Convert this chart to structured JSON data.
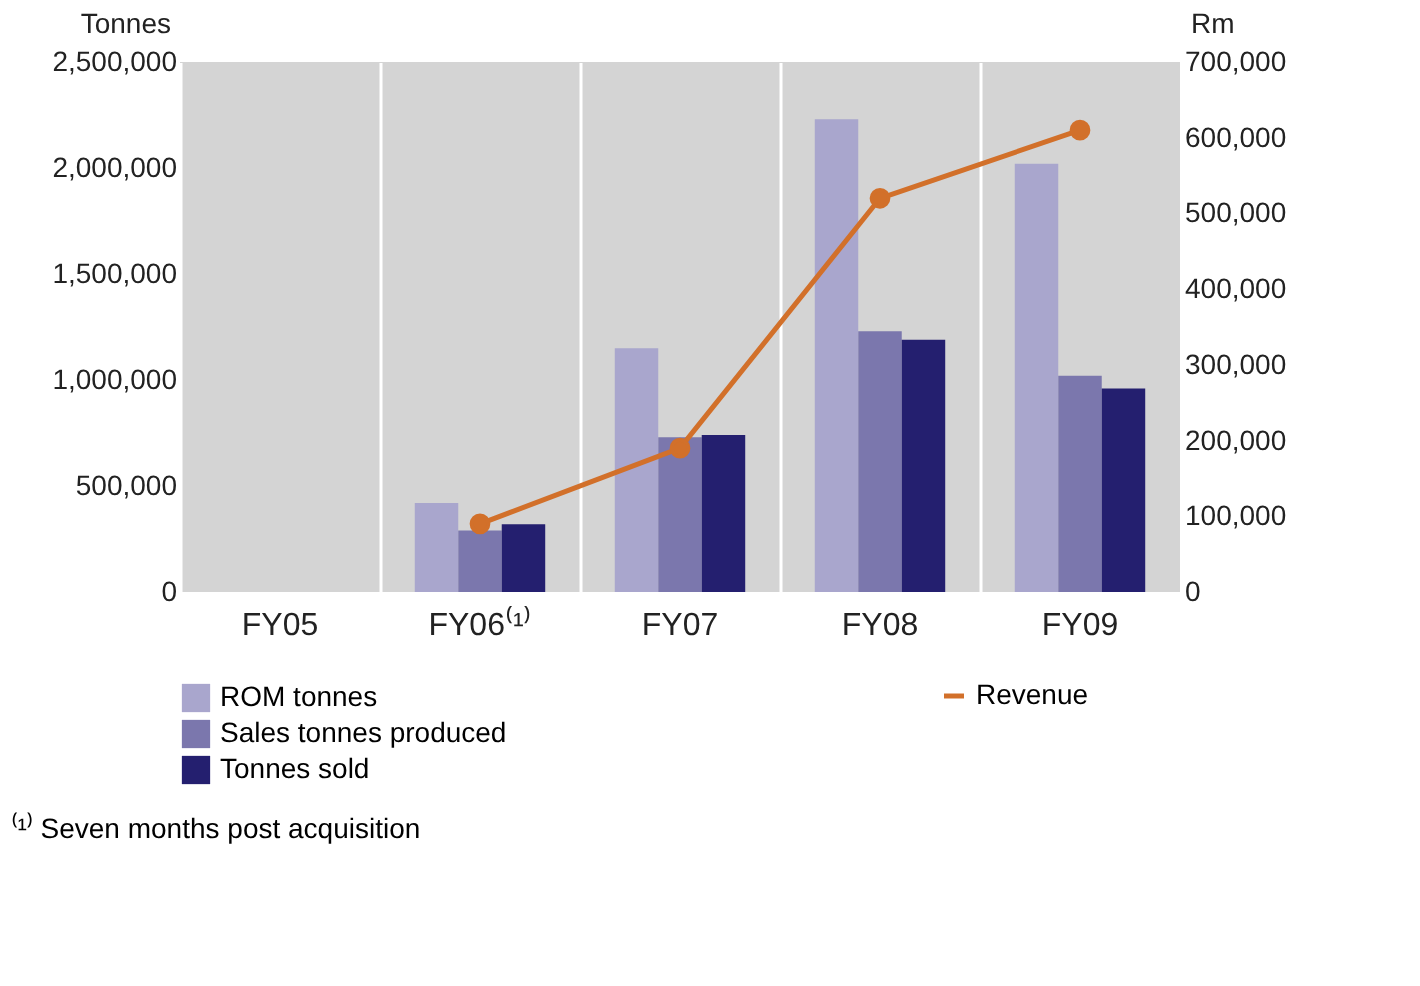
{
  "chart_data": {
    "type": "bar",
    "categories": [
      "FY05",
      "FY06⁽¹⁾",
      "FY07",
      "FY08",
      "FY09"
    ],
    "ylabel": "Tonnes",
    "y2label": "Rm",
    "series": [
      {
        "name": "ROM tonnes",
        "color": "#a9a6cd",
        "values": [
          null,
          420000,
          1150000,
          2230000,
          2020000
        ]
      },
      {
        "name": "Sales tonnes produced",
        "color": "#7b77ad",
        "values": [
          null,
          290000,
          730000,
          1230000,
          1020000
        ]
      },
      {
        "name": "Tonnes sold",
        "color": "#241f6f",
        "values": [
          null,
          320000,
          740000,
          1190000,
          960000
        ]
      },
      {
        "name": "Revenue",
        "type": "line",
        "axis": "y2",
        "color": "#d2702a",
        "marker": "circle",
        "values": [
          null,
          90000,
          190000,
          520000,
          610000
        ]
      }
    ],
    "ylim": [
      0,
      2500000
    ],
    "yticks": [
      0,
      {
        "value": 500000,
        "label": "500,000"
      },
      {
        "value": 1000000,
        "label": "1,000,000"
      },
      {
        "value": 1500000,
        "label": "1,500,000"
      },
      {
        "value": 2000000,
        "label": "2,000,000"
      },
      {
        "value": 2500000,
        "label": "2,500,000"
      }
    ],
    "y2lim": [
      0,
      700000
    ],
    "y2ticks": [
      0,
      {
        "value": 100000,
        "label": "100,000"
      },
      {
        "value": 200000,
        "label": "200,000"
      },
      {
        "value": 300000,
        "label": "300,000"
      },
      {
        "value": 400000,
        "label": "400,000"
      },
      {
        "value": 500000,
        "label": "500,000"
      },
      {
        "value": 600000,
        "label": "600,000"
      },
      {
        "value": 700000,
        "label": "700,000"
      }
    ],
    "grid": "x",
    "legend": "bottom",
    "annotations": [
      "⁽¹⁾ Seven months post acquisition"
    ]
  }
}
